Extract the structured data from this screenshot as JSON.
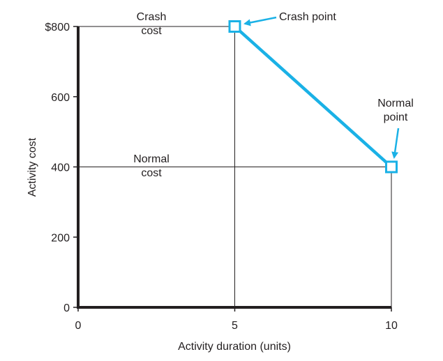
{
  "chart_data": {
    "type": "line",
    "xlabel": "Activity duration (units)",
    "ylabel": "Activity cost",
    "xlim": [
      0,
      10
    ],
    "ylim": [
      0,
      800
    ],
    "x_ticks": [
      {
        "value": 0,
        "label": "0"
      },
      {
        "value": 5,
        "label": "5"
      },
      {
        "value": 10,
        "label": "10"
      }
    ],
    "y_ticks": [
      {
        "value": 0,
        "label": "0"
      },
      {
        "value": 200,
        "label": "200"
      },
      {
        "value": 400,
        "label": "400"
      },
      {
        "value": 600,
        "label": "600"
      },
      {
        "value": 800,
        "label": "$800"
      }
    ],
    "series": [
      {
        "x": [
          5,
          10
        ],
        "y": [
          800,
          400
        ],
        "color": "#1ab1e6"
      }
    ],
    "annotations": {
      "crash_cost": [
        "Crash",
        "cost"
      ],
      "normal_cost": [
        "Normal",
        "cost"
      ],
      "crash_point": [
        "Crash point"
      ],
      "normal_point": [
        "Normal",
        "point"
      ]
    },
    "grid": false,
    "accent_color": "#1ab1e6",
    "axis_color": "#231f20"
  }
}
